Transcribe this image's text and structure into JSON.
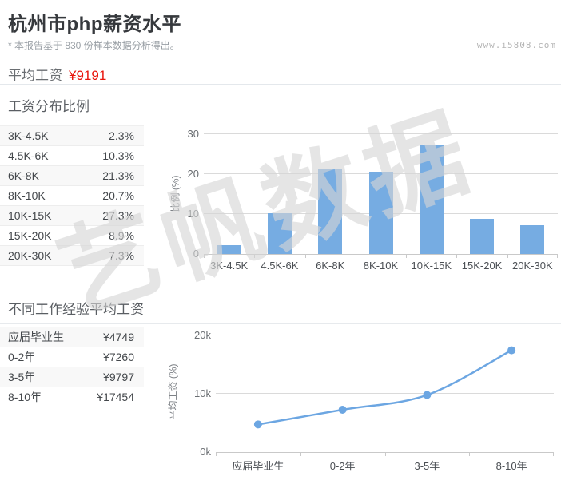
{
  "page": {
    "title": "杭州市php薪资水平",
    "subtitle": "* 本报告基于 830 份样本数据分析得出。",
    "website": "www.i5808.com",
    "watermark": "艺帆数据"
  },
  "average": {
    "label": "平均工资",
    "value": "¥9191"
  },
  "distribution": {
    "heading": "工资分布比例",
    "rows": [
      [
        "3K-4.5K",
        "2.3%"
      ],
      [
        "4.5K-6K",
        "10.3%"
      ],
      [
        "6K-8K",
        "21.3%"
      ],
      [
        "8K-10K",
        "20.7%"
      ],
      [
        "10K-15K",
        "27.3%"
      ],
      [
        "15K-20K",
        "8.9%"
      ],
      [
        "20K-30K",
        "7.3%"
      ]
    ]
  },
  "experience": {
    "heading": "不同工作经验平均工资",
    "rows": [
      [
        "应届毕业生",
        "¥4749"
      ],
      [
        "0-2年",
        "¥7260"
      ],
      [
        "3-5年",
        "¥9797"
      ],
      [
        "8-10年",
        "¥17454"
      ]
    ]
  },
  "chart_data": [
    {
      "type": "bar",
      "title": "工资分布比例",
      "categories": [
        "3K-4.5K",
        "4.5K-6K",
        "6K-8K",
        "8K-10K",
        "10K-15K",
        "15K-20K",
        "20K-30K"
      ],
      "values": [
        2.3,
        10.3,
        21.3,
        20.7,
        27.3,
        8.9,
        7.3
      ],
      "xlabel": "",
      "ylabel": "比例 (%)",
      "yticks": [
        0,
        10,
        20,
        30
      ],
      "ylim": [
        0,
        30
      ],
      "grid": true,
      "legend": false,
      "bar_color": "#76ace2"
    },
    {
      "type": "line",
      "title": "不同工作经验平均工资",
      "categories": [
        "应届毕业生",
        "0-2年",
        "3-5年",
        "8-10年"
      ],
      "values": [
        4749,
        7260,
        9797,
        17454
      ],
      "xlabel": "",
      "ylabel": "平均工资 (%)",
      "yticks": [
        0,
        10000,
        20000
      ],
      "ytick_labels": [
        "0k",
        "10k",
        "20k"
      ],
      "ylim": [
        0,
        20000
      ],
      "grid": true,
      "legend": false,
      "smooth": true,
      "line_color": "#6ca6e2",
      "marker_color": "#6ca6e2"
    }
  ],
  "colors": {
    "accent_red": "#e8150c",
    "bar_blue": "#76ace2",
    "line_blue": "#6ca6e2",
    "watermark_gray": "#d5d5d5"
  }
}
